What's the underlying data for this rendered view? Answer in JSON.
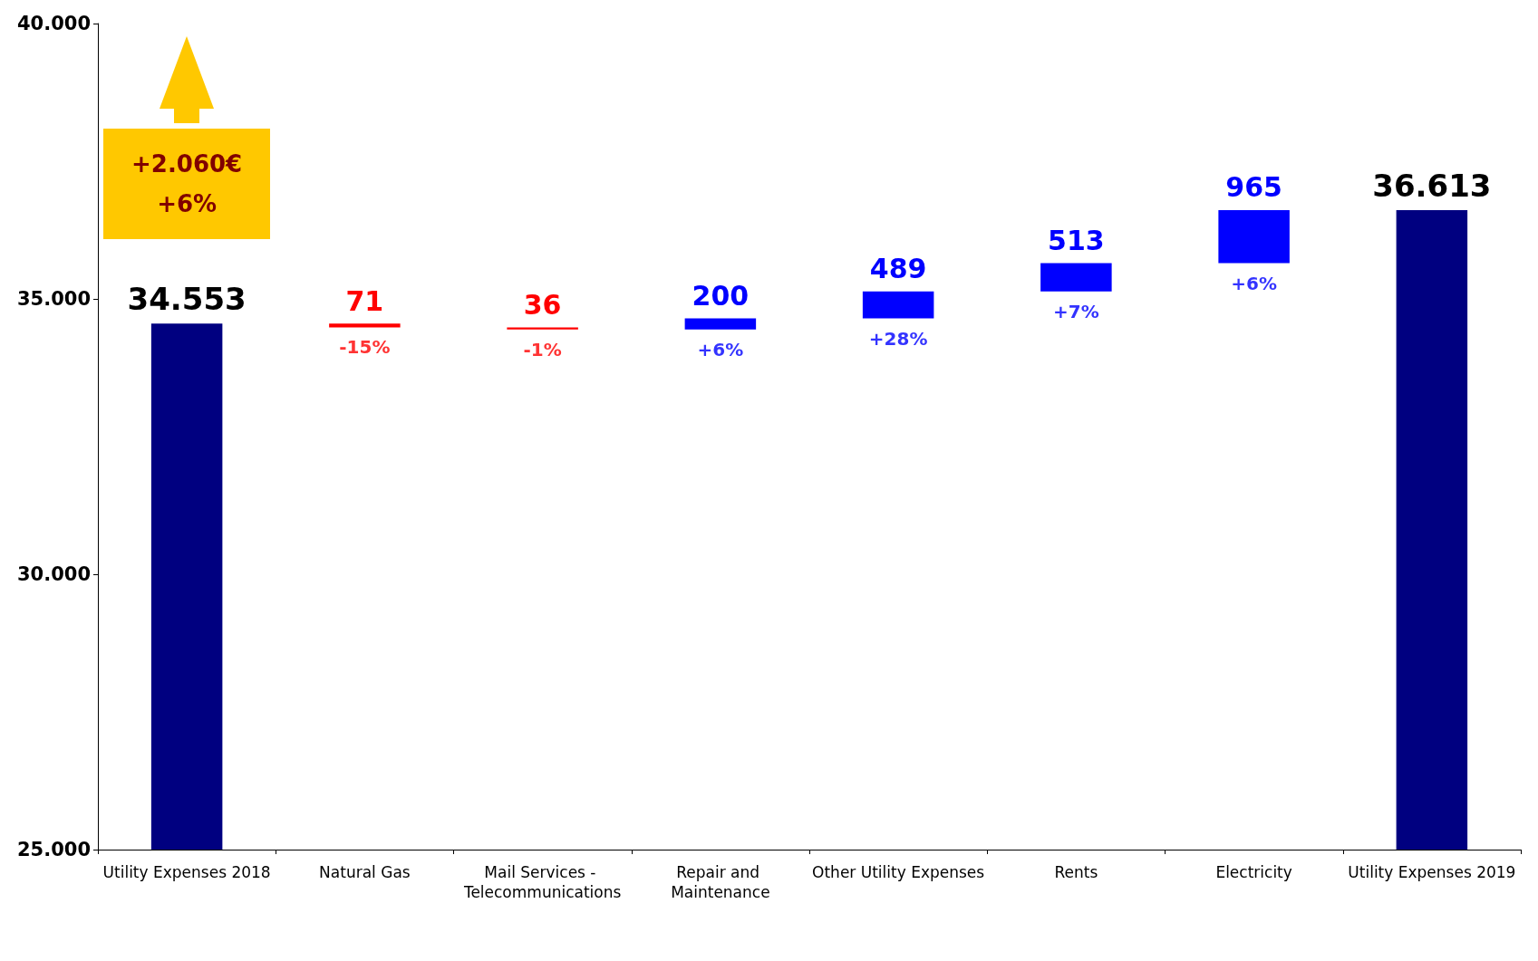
{
  "chart_data": {
    "type": "bar",
    "categories": [
      "Utility Expenses 2018",
      "Natural Gas",
      "Mail Services - Telecommunications",
      "Repair and Maintenance",
      "Other Utility Expenses",
      "Rents",
      "Electricity",
      "Utility Expenses 2019"
    ],
    "values": [
      34553,
      -71,
      -36,
      200,
      489,
      513,
      965,
      36613
    ],
    "base": [
      null,
      34553,
      34482,
      34446,
      34646,
      35135,
      35648,
      null
    ],
    "colors": [
      "#000080",
      "#ff0000",
      "#ff0000",
      "#0000ff",
      "#0000ff",
      "#0000ff",
      "#0000ff",
      "#000080"
    ],
    "value_labels": [
      "34.553",
      "71",
      "36",
      "200",
      "489",
      "513",
      "965",
      "36.613"
    ],
    "ylim": [
      25000,
      40000
    ],
    "yticks": [
      {
        "value": 25000,
        "label": "25.000"
      },
      {
        "value": 30000,
        "label": "30.000"
      },
      {
        "value": 35000,
        "label": "35.000"
      },
      {
        "value": 40000,
        "label": "40.000"
      }
    ],
    "grid": false,
    "annotations": [
      "+2.060€",
      "+6%",
      {
        "text": "-15%",
        "x": "Natural Gas",
        "y": 34482
      },
      {
        "text": "-1%",
        "x": "Mail Services - Telecommunications",
        "y": 34446
      },
      {
        "text": "+6%",
        "x": "Repair and Maintenance",
        "y": 34446
      },
      {
        "text": "+28%",
        "x": "Other Utility Expenses",
        "y": 34646
      },
      {
        "text": "+7%",
        "x": "Rents",
        "y": 35135
      },
      {
        "text": "+6%",
        "x": "Electricity",
        "y": 35648
      }
    ]
  }
}
